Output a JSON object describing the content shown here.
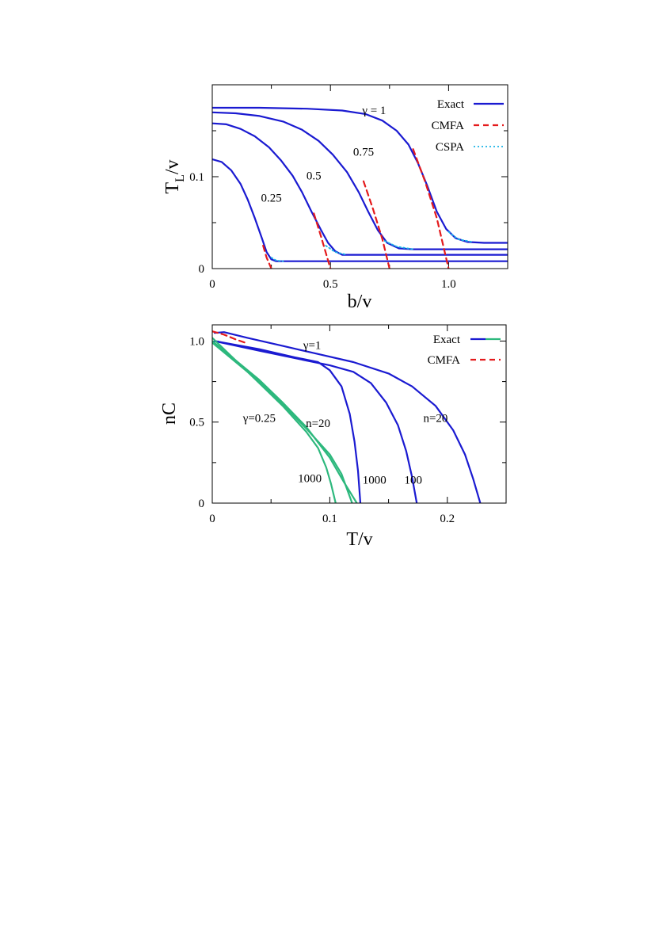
{
  "chart_data": [
    {
      "type": "line",
      "xlabel": "b/v",
      "ylabel": "T",
      "ylabel_sub": "L",
      "ylabel_suffix": "/v",
      "xlim": [
        0,
        1.25
      ],
      "ylim": [
        0,
        0.2
      ],
      "x_ticks": [
        {
          "value": 0,
          "label": "0"
        },
        {
          "value": 0.5,
          "label": "0.5"
        },
        {
          "value": 1.0,
          "label": "1.0"
        }
      ],
      "x_minor_ticks": [
        0.25,
        0.75
      ],
      "y_ticks": [
        {
          "value": 0,
          "label": "0"
        },
        {
          "value": 0.1,
          "label": "0.1"
        }
      ],
      "y_minor_ticks": [
        0.05,
        0.15
      ],
      "legend": {
        "placement": "top-right",
        "entries": [
          {
            "label": "Exact",
            "color": "#1a1ad1",
            "style": "solid"
          },
          {
            "label": "CMFA",
            "color": "#e41a1c",
            "style": "dashed"
          },
          {
            "label": "CSPA",
            "color": "#1ab3e6",
            "style": "dotted"
          }
        ]
      },
      "annotations": [
        {
          "text": "γ = 1",
          "x": 0.685,
          "y": 0.168
        },
        {
          "text": "0.75",
          "x": 0.64,
          "y": 0.123
        },
        {
          "text": "0.5",
          "x": 0.43,
          "y": 0.097
        },
        {
          "text": "0.25",
          "x": 0.25,
          "y": 0.073
        }
      ],
      "series": [
        {
          "style": "exact",
          "points": [
            [
              0,
              0.175
            ],
            [
              0.2,
              0.175
            ],
            [
              0.4,
              0.174
            ],
            [
              0.55,
              0.172
            ],
            [
              0.65,
              0.168
            ],
            [
              0.72,
              0.161
            ],
            [
              0.78,
              0.15
            ],
            [
              0.83,
              0.135
            ],
            [
              0.87,
              0.115
            ],
            [
              0.91,
              0.09
            ],
            [
              0.95,
              0.062
            ],
            [
              0.99,
              0.043
            ],
            [
              1.03,
              0.033
            ],
            [
              1.08,
              0.029
            ],
            [
              1.15,
              0.028
            ],
            [
              1.25,
              0.028
            ]
          ]
        },
        {
          "style": "exact",
          "points": [
            [
              0,
              0.17
            ],
            [
              0.1,
              0.169
            ],
            [
              0.2,
              0.166
            ],
            [
              0.3,
              0.16
            ],
            [
              0.38,
              0.151
            ],
            [
              0.45,
              0.139
            ],
            [
              0.51,
              0.124
            ],
            [
              0.57,
              0.105
            ],
            [
              0.62,
              0.083
            ],
            [
              0.66,
              0.062
            ],
            [
              0.7,
              0.042
            ],
            [
              0.74,
              0.028
            ],
            [
              0.79,
              0.022
            ],
            [
              0.85,
              0.021
            ],
            [
              1.25,
              0.021
            ]
          ]
        },
        {
          "style": "exact",
          "points": [
            [
              0,
              0.158
            ],
            [
              0.06,
              0.157
            ],
            [
              0.12,
              0.152
            ],
            [
              0.18,
              0.144
            ],
            [
              0.24,
              0.132
            ],
            [
              0.29,
              0.118
            ],
            [
              0.34,
              0.101
            ],
            [
              0.38,
              0.083
            ],
            [
              0.42,
              0.062
            ],
            [
              0.46,
              0.042
            ],
            [
              0.49,
              0.028
            ],
            [
              0.52,
              0.019
            ],
            [
              0.55,
              0.015
            ],
            [
              0.6,
              0.015
            ],
            [
              1.25,
              0.015
            ]
          ]
        },
        {
          "style": "exact",
          "points": [
            [
              0,
              0.119
            ],
            [
              0.04,
              0.116
            ],
            [
              0.08,
              0.107
            ],
            [
              0.12,
              0.092
            ],
            [
              0.15,
              0.075
            ],
            [
              0.18,
              0.055
            ],
            [
              0.21,
              0.033
            ],
            [
              0.23,
              0.018
            ],
            [
              0.25,
              0.01
            ],
            [
              0.27,
              0.008
            ],
            [
              1.25,
              0.008
            ]
          ]
        },
        {
          "style": "cmfa",
          "points": [
            [
              0.85,
              0.13
            ],
            [
              0.9,
              0.095
            ],
            [
              0.95,
              0.055
            ],
            [
              1.0,
              0.0
            ]
          ]
        },
        {
          "style": "cmfa",
          "points": [
            [
              0.64,
              0.095
            ],
            [
              0.68,
              0.065
            ],
            [
              0.72,
              0.032
            ],
            [
              0.75,
              0.0
            ]
          ]
        },
        {
          "style": "cmfa",
          "points": [
            [
              0.43,
              0.06
            ],
            [
              0.46,
              0.035
            ],
            [
              0.5,
              0.0
            ]
          ]
        },
        {
          "style": "cmfa",
          "points": [
            [
              0.215,
              0.025
            ],
            [
              0.23,
              0.012
            ],
            [
              0.25,
              0.0
            ]
          ]
        },
        {
          "style": "cspa",
          "points": [
            [
              1.0,
              0.04
            ],
            [
              1.04,
              0.032
            ],
            [
              1.1,
              0.029
            ]
          ]
        },
        {
          "style": "cspa",
          "points": [
            [
              0.73,
              0.03
            ],
            [
              0.78,
              0.024
            ],
            [
              0.85,
              0.021
            ]
          ]
        },
        {
          "style": "cspa",
          "points": [
            [
              0.48,
              0.025
            ],
            [
              0.52,
              0.018
            ],
            [
              0.57,
              0.015
            ]
          ]
        },
        {
          "style": "cspa",
          "points": [
            [
              0.25,
              0.012
            ],
            [
              0.27,
              0.009
            ],
            [
              0.3,
              0.008
            ]
          ]
        }
      ]
    },
    {
      "type": "line",
      "xlabel": "T/v",
      "ylabel": "nC",
      "xlim": [
        0,
        0.25
      ],
      "ylim": [
        0,
        1.1
      ],
      "x_ticks": [
        {
          "value": 0,
          "label": "0"
        },
        {
          "value": 0.1,
          "label": "0.1"
        },
        {
          "value": 0.2,
          "label": "0.2"
        }
      ],
      "x_minor_ticks": [
        0.05,
        0.15,
        0.25
      ],
      "y_ticks": [
        {
          "value": 0,
          "label": "0"
        },
        {
          "value": 0.5,
          "label": "0.5"
        },
        {
          "value": 1.0,
          "label": "1.0"
        }
      ],
      "y_minor_ticks": [
        0.25,
        0.75
      ],
      "legend": {
        "placement": "top-right",
        "entries": [
          {
            "label": "Exact",
            "colors": [
              "#1a1ad1",
              "#2db87d"
            ],
            "style": "solid"
          },
          {
            "label": "CMFA",
            "color": "#e41a1c",
            "style": "dashed"
          }
        ]
      },
      "annotations": [
        {
          "text": "γ=1",
          "x": 0.085,
          "y": 0.95
        },
        {
          "text": "γ=0.25",
          "x": 0.04,
          "y": 0.5
        },
        {
          "text": "n=20",
          "x": 0.09,
          "y": 0.47
        },
        {
          "text": "n=20",
          "x": 0.19,
          "y": 0.5
        },
        {
          "text": "1000",
          "x": 0.083,
          "y": 0.13
        },
        {
          "text": "1000",
          "x": 0.138,
          "y": 0.12
        },
        {
          "text": "100",
          "x": 0.171,
          "y": 0.12
        }
      ],
      "series": [
        {
          "name": "n=20",
          "style": "exact-blue",
          "points": [
            [
              0.002,
              1.05
            ],
            [
              0.01,
              1.055
            ],
            [
              0.03,
              1.02
            ],
            [
              0.06,
              0.97
            ],
            [
              0.09,
              0.92
            ],
            [
              0.12,
              0.87
            ],
            [
              0.15,
              0.8
            ],
            [
              0.17,
              0.72
            ],
            [
              0.19,
              0.6
            ],
            [
              0.205,
              0.45
            ],
            [
              0.215,
              0.3
            ],
            [
              0.222,
              0.15
            ],
            [
              0.228,
              0.0
            ]
          ]
        },
        {
          "name": "100",
          "style": "exact-blue",
          "points": [
            [
              0.002,
              1.0
            ],
            [
              0.04,
              0.94
            ],
            [
              0.08,
              0.88
            ],
            [
              0.1,
              0.85
            ],
            [
              0.12,
              0.81
            ],
            [
              0.135,
              0.74
            ],
            [
              0.148,
              0.62
            ],
            [
              0.158,
              0.48
            ],
            [
              0.165,
              0.32
            ],
            [
              0.17,
              0.16
            ],
            [
              0.174,
              0.0
            ]
          ]
        },
        {
          "name": "1000",
          "style": "exact-blue",
          "points": [
            [
              0.002,
              1.0
            ],
            [
              0.04,
              0.95
            ],
            [
              0.07,
              0.9
            ],
            [
              0.09,
              0.87
            ],
            [
              0.1,
              0.82
            ],
            [
              0.11,
              0.72
            ],
            [
              0.117,
              0.55
            ],
            [
              0.121,
              0.38
            ],
            [
              0.124,
              0.2
            ],
            [
              0.126,
              0.0
            ]
          ]
        },
        {
          "name": "n=20",
          "style": "exact-green",
          "points": [
            [
              0.0,
              1.0
            ],
            [
              0.02,
              0.88
            ],
            [
              0.04,
              0.76
            ],
            [
              0.06,
              0.62
            ],
            [
              0.08,
              0.47
            ],
            [
              0.1,
              0.28
            ],
            [
              0.112,
              0.13
            ],
            [
              0.123,
              0.0
            ]
          ]
        },
        {
          "name": "1000",
          "style": "exact-green",
          "points": [
            [
              0.0,
              1.02
            ],
            [
              0.02,
              0.88
            ],
            [
              0.04,
              0.74
            ],
            [
              0.06,
              0.6
            ],
            [
              0.08,
              0.44
            ],
            [
              0.09,
              0.34
            ],
            [
              0.097,
              0.22
            ],
            [
              0.101,
              0.12
            ],
            [
              0.105,
              0.0
            ]
          ]
        },
        {
          "style": "exact-green",
          "points": [
            [
              0.0,
              0.99
            ],
            [
              0.02,
              0.87
            ],
            [
              0.04,
              0.75
            ],
            [
              0.06,
              0.61
            ],
            [
              0.08,
              0.46
            ],
            [
              0.1,
              0.3
            ],
            [
              0.11,
              0.18
            ],
            [
              0.119,
              0.0
            ]
          ]
        },
        {
          "style": "cmfa",
          "points": [
            [
              0.0,
              1.06
            ],
            [
              0.01,
              1.04
            ],
            [
              0.02,
              1.01
            ],
            [
              0.028,
              0.99
            ]
          ]
        }
      ]
    }
  ]
}
